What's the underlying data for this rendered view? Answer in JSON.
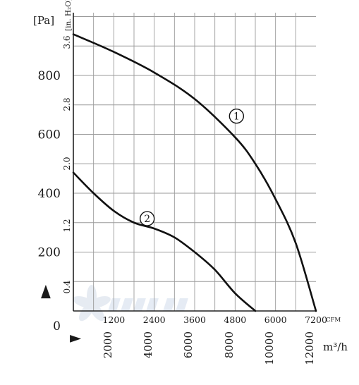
{
  "chart_data": {
    "type": "line",
    "y_left_unit": "[Pa]",
    "y_left_ticks": [
      0,
      200,
      400,
      600,
      800
    ],
    "y_left_ylim": [
      0,
      950
    ],
    "y_right_unit": "[in. H₂O]",
    "y_right_ticks": [
      "0.4",
      "1.2",
      "2.0",
      "2.8",
      "3.6"
    ],
    "x_cfm_unit": "CFM",
    "x_cfm_ticks": [
      "1200",
      "2400",
      "3600",
      "4800",
      "6000",
      "7200"
    ],
    "x_cfm_range": [
      0,
      7200
    ],
    "x_m3h_unit": "m³/h",
    "x_m3h_ticks": [
      "2000",
      "4000",
      "6000",
      "8000",
      "10000",
      "12000"
    ],
    "grid": true,
    "series": [
      {
        "name": "1",
        "x_cfm": [
          0,
          1200,
          2400,
          3600,
          4800,
          5400,
          6000,
          6600,
          7200
        ],
        "y_pa": [
          940,
          880,
          810,
          720,
          590,
          500,
          380,
          230,
          0
        ]
      },
      {
        "name": "2",
        "x_cfm": [
          0,
          600,
          1200,
          1800,
          2400,
          3000,
          3600,
          4200,
          4800,
          5400
        ],
        "y_pa": [
          470,
          400,
          340,
          300,
          280,
          250,
          200,
          140,
          60,
          0
        ]
      }
    ],
    "arrows": [
      "▲",
      "▶"
    ]
  }
}
